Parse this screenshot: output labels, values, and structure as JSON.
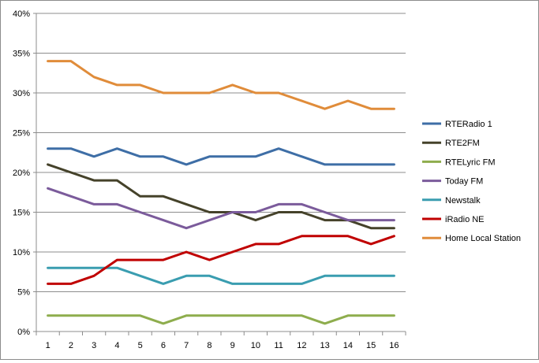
{
  "chart_data": {
    "type": "line",
    "title": "",
    "xlabel": "",
    "ylabel": "",
    "x": [
      1,
      2,
      3,
      4,
      5,
      6,
      7,
      8,
      9,
      10,
      11,
      12,
      13,
      14,
      15,
      16
    ],
    "x_tick_labels": [
      "1",
      "2",
      "3",
      "4",
      "5",
      "6",
      "7",
      "8",
      "9",
      "10",
      "11",
      "12",
      "13",
      "14",
      "15",
      "16"
    ],
    "ylim": [
      0,
      0.4
    ],
    "y_ticks": [
      0,
      0.05,
      0.1,
      0.15,
      0.2,
      0.25,
      0.3,
      0.35,
      0.4
    ],
    "y_tick_labels": [
      "0%",
      "5%",
      "10%",
      "15%",
      "20%",
      "25%",
      "30%",
      "35%",
      "40%"
    ],
    "grid": "horizontal",
    "legend_position": "right",
    "series": [
      {
        "name": "RTERadio 1",
        "color": "#3e6ea6",
        "values": [
          0.23,
          0.23,
          0.22,
          0.23,
          0.22,
          0.22,
          0.21,
          0.22,
          0.22,
          0.22,
          0.23,
          0.22,
          0.21,
          0.21,
          0.21,
          0.21
        ]
      },
      {
        "name": "RTE2FM",
        "color": "#45422a",
        "values": [
          0.21,
          0.2,
          0.19,
          0.19,
          0.17,
          0.17,
          0.16,
          0.15,
          0.15,
          0.14,
          0.15,
          0.15,
          0.14,
          0.14,
          0.13,
          0.13
        ]
      },
      {
        "name": "RTELyric FM",
        "color": "#8ead4d",
        "values": [
          0.02,
          0.02,
          0.02,
          0.02,
          0.02,
          0.01,
          0.02,
          0.02,
          0.02,
          0.02,
          0.02,
          0.02,
          0.01,
          0.02,
          0.02,
          0.02
        ]
      },
      {
        "name": "Today FM",
        "color": "#7b5b9b",
        "values": [
          0.18,
          0.17,
          0.16,
          0.16,
          0.15,
          0.14,
          0.13,
          0.14,
          0.15,
          0.15,
          0.16,
          0.16,
          0.15,
          0.14,
          0.14,
          0.14
        ]
      },
      {
        "name": "Newstalk",
        "color": "#3a9db0",
        "values": [
          0.08,
          0.08,
          0.08,
          0.08,
          0.07,
          0.06,
          0.07,
          0.07,
          0.06,
          0.06,
          0.06,
          0.06,
          0.07,
          0.07,
          0.07,
          0.07
        ]
      },
      {
        "name": "iRadio NE",
        "color": "#c00000",
        "values": [
          0.06,
          0.06,
          0.07,
          0.09,
          0.09,
          0.09,
          0.1,
          0.09,
          0.1,
          0.11,
          0.11,
          0.12,
          0.12,
          0.12,
          0.11,
          0.12
        ]
      },
      {
        "name": "Home Local Station",
        "color": "#e08c3a",
        "values": [
          0.34,
          0.34,
          0.32,
          0.31,
          0.31,
          0.3,
          0.3,
          0.3,
          0.31,
          0.3,
          0.3,
          0.29,
          0.28,
          0.29,
          0.28,
          0.28
        ]
      }
    ]
  }
}
